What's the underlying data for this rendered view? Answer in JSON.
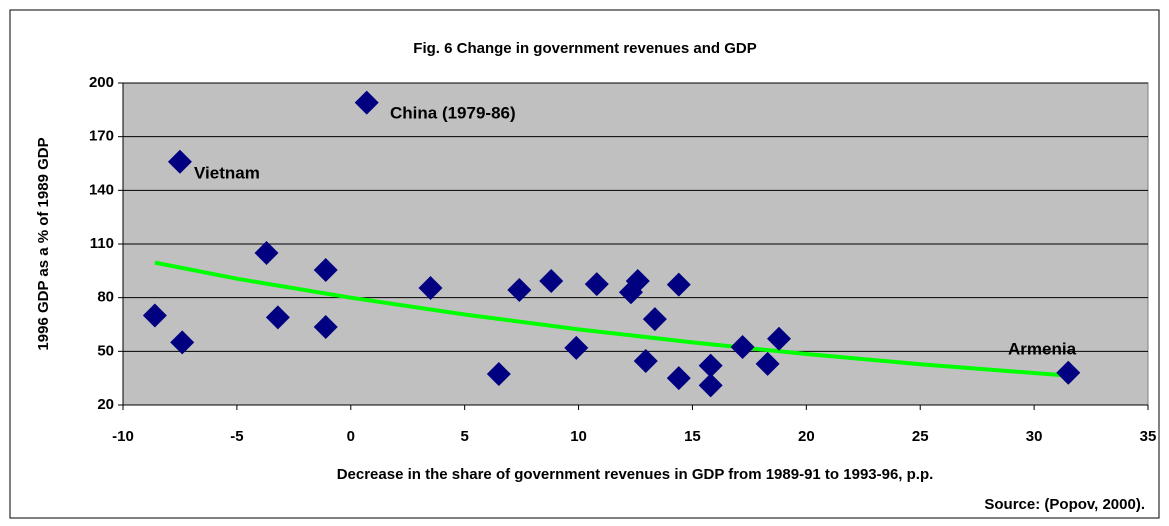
{
  "chart_data": {
    "type": "scatter",
    "title": "Fig. 6 Change in government revenues and GDP",
    "x_label": "Decrease in the share of government revenues in GDP from 1989-91 to 1993-96, p.p.",
    "y_label": "1996 GDP as a % of 1989 GDP",
    "source": "Source: (Popov, 2000).",
    "annotations": [
      "Vietnam",
      "China (1979-86)",
      "Armenia"
    ],
    "xlim": [
      -10,
      35
    ],
    "xticks": [
      -10,
      -5,
      0,
      5,
      10,
      15,
      20,
      25,
      30,
      35
    ],
    "ylim": [
      20,
      200
    ],
    "yticks": [
      20,
      50,
      80,
      110,
      140,
      170,
      200
    ],
    "grid": true,
    "series": [
      {
        "color": "#000080",
        "x": [
          -8.6,
          -7.5,
          -7.4,
          -3.7,
          -3.2,
          -1.1,
          -1.1,
          0.7,
          3.5,
          6.5,
          7.4,
          8.8,
          9.9,
          10.8,
          12.3,
          12.6,
          12.95,
          13.35,
          14.4,
          14.4,
          15.8,
          15.8,
          17.2,
          18.3,
          18.8,
          31.5
        ],
        "values": [
          70,
          156,
          55,
          105,
          69,
          95.5,
          63.6,
          189,
          85.4,
          37.3,
          84.3,
          89.3,
          51.9,
          87.6,
          83,
          89.3,
          44.6,
          68,
          87.3,
          35,
          31,
          42,
          52.4,
          43,
          57,
          38
        ]
      }
    ],
    "trendline": {
      "color": "#00ff00",
      "x": [
        -8.6,
        -5,
        0,
        5,
        10,
        15,
        20,
        25,
        31.5
      ],
      "values": [
        99.6,
        90.6,
        80,
        70.6,
        62.3,
        55,
        48.5,
        42.8,
        36.4
      ]
    }
  }
}
